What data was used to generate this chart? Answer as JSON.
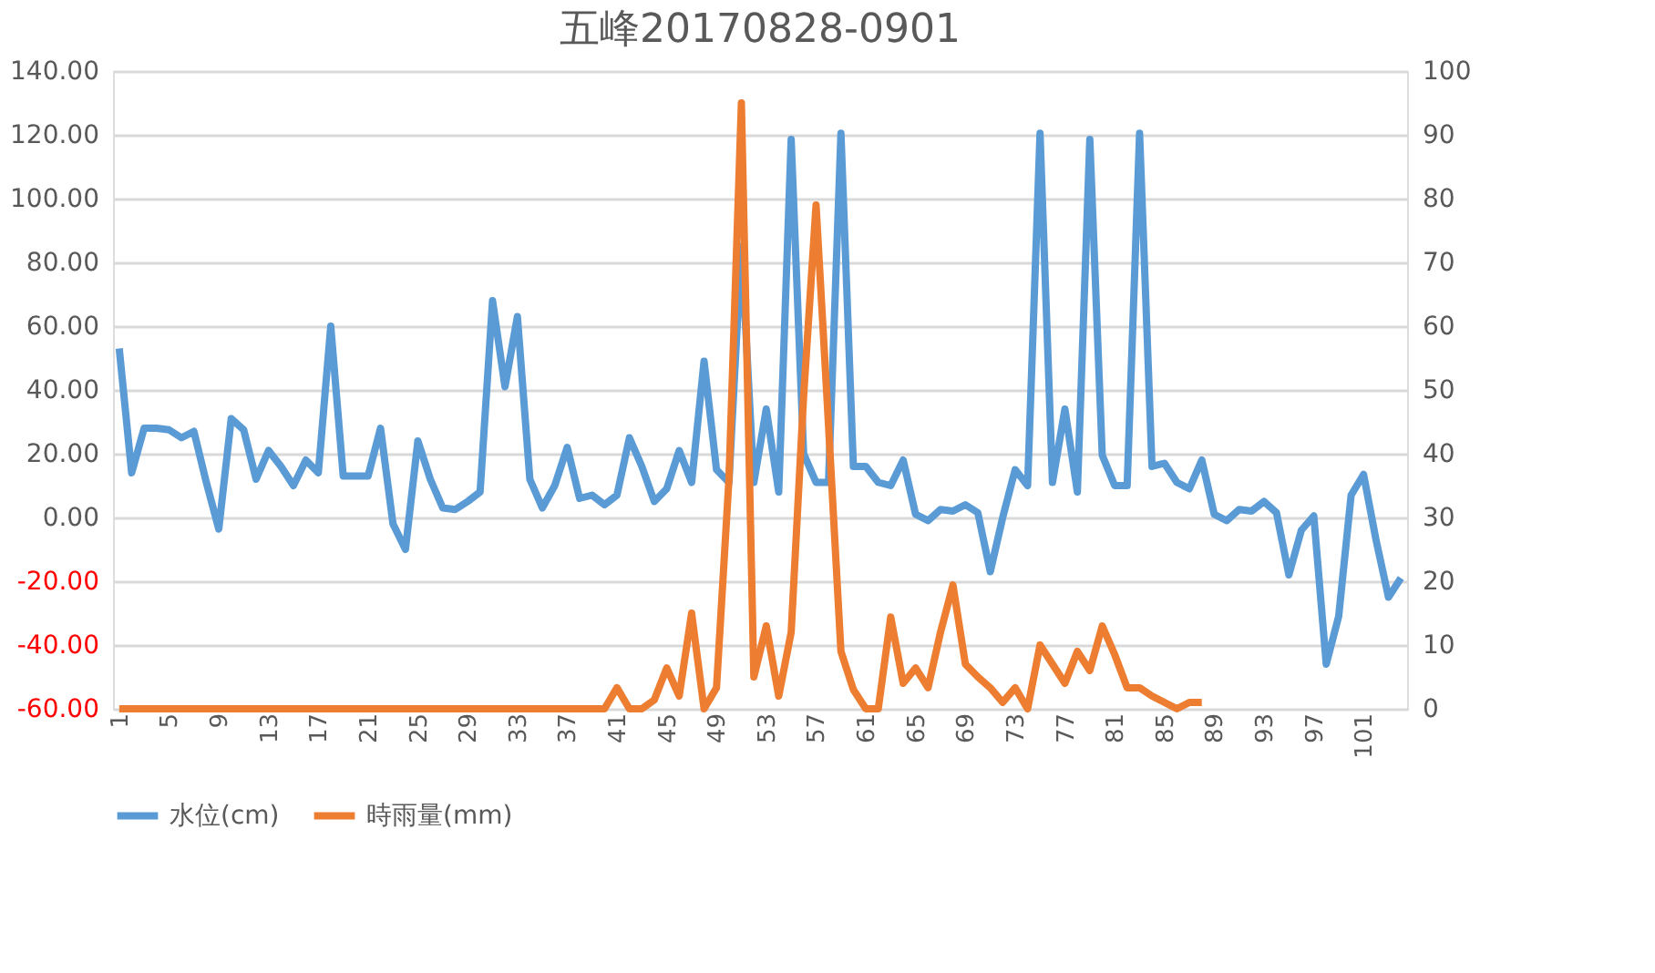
{
  "chart_data": {
    "type": "line",
    "title": "五峰20170828-0901",
    "categories": [
      "1",
      null,
      null,
      null,
      "5",
      null,
      null,
      null,
      "9",
      null,
      null,
      null,
      "13",
      null,
      null,
      null,
      "17",
      null,
      null,
      null,
      "21",
      null,
      null,
      null,
      "25",
      null,
      null,
      null,
      "29",
      null,
      null,
      null,
      "33",
      null,
      null,
      null,
      "37",
      null,
      null,
      null,
      "41",
      null,
      null,
      null,
      "45",
      null,
      null,
      null,
      "49",
      null,
      null,
      null,
      "53",
      null,
      null,
      null,
      "57",
      null,
      null,
      null,
      "61",
      null,
      null,
      null,
      "65",
      null,
      null,
      null,
      "69",
      null,
      null,
      null,
      "73",
      null,
      null,
      null,
      "77",
      null,
      null,
      null,
      "81",
      null,
      null,
      null,
      "85",
      null,
      null,
      null,
      "89",
      null,
      null,
      null,
      "93",
      null,
      null,
      null,
      "97",
      null,
      null,
      null,
      "101",
      null,
      null,
      null
    ],
    "series": [
      {
        "name": "水位(cm)",
        "color": "#5b9bd5",
        "values": [
          53,
          14,
          28,
          28,
          27.5,
          25,
          27,
          11,
          -3.6,
          31,
          27.5,
          12,
          21,
          16,
          10,
          18,
          14,
          60,
          13,
          13,
          13,
          28,
          -2,
          -10,
          24,
          12,
          3,
          2.5,
          5,
          8,
          68,
          41,
          63,
          12,
          3,
          10,
          22,
          6,
          7,
          4,
          7,
          25,
          16,
          5,
          9,
          21,
          11,
          49,
          15,
          11,
          85,
          11,
          34,
          8,
          118.6,
          20,
          11,
          11,
          120.5,
          16,
          16,
          11,
          10,
          18,
          1,
          -1,
          2.5,
          2,
          4,
          1.5,
          -17,
          0,
          15,
          10,
          120.5,
          11,
          34,
          8,
          118.6,
          19.5,
          10,
          10,
          120.5,
          16,
          17,
          11,
          9,
          18,
          1,
          -1,
          2.5,
          2,
          5,
          1.5,
          -18,
          -4,
          0.5,
          -46,
          -31,
          7,
          13.5,
          -7,
          -25,
          -19
        ]
      },
      {
        "name": "時雨量(mm)",
        "color": "#ed7d31",
        "axis": "y2",
        "values": [
          0,
          0,
          0,
          0,
          0,
          0,
          0,
          0,
          0,
          0,
          0,
          0,
          0,
          0,
          0,
          0,
          0,
          0,
          0,
          0,
          0,
          0,
          0,
          0,
          0,
          0,
          0,
          0,
          0,
          0,
          0,
          0,
          0,
          0,
          0,
          0,
          0,
          0,
          0,
          0,
          3.3,
          0,
          0,
          1.4,
          6.4,
          2,
          15,
          0,
          3.3,
          36,
          95,
          5,
          13,
          2,
          12,
          49,
          79,
          44.5,
          9,
          3,
          0,
          0,
          14.4,
          4,
          6.4,
          3.3,
          12,
          19.4,
          7,
          5,
          3.3,
          1,
          3.3,
          0,
          10,
          7,
          4,
          9,
          6,
          13,
          8.5,
          3.3,
          3.3,
          2,
          1,
          0,
          1,
          1,
          null,
          null,
          null,
          null,
          null,
          null,
          null,
          null,
          null,
          null,
          null,
          null,
          null,
          null,
          null,
          null
        ]
      }
    ],
    "ylim": [
      -60,
      140
    ],
    "yticks": [
      {
        "value": -60,
        "label": "-60.00"
      },
      {
        "value": -40,
        "label": "-40.00"
      },
      {
        "value": -20,
        "label": "-20.00"
      },
      {
        "value": 0,
        "label": "0.00"
      },
      {
        "value": 20,
        "label": "20.00"
      },
      {
        "value": 40,
        "label": "40.00"
      },
      {
        "value": 60,
        "label": "60.00"
      },
      {
        "value": 80,
        "label": "80.00"
      },
      {
        "value": 100,
        "label": "100.00"
      },
      {
        "value": 120,
        "label": "120.00"
      },
      {
        "value": 140,
        "label": "140.00"
      }
    ],
    "y2lim": [
      0,
      100
    ],
    "y2ticks": [
      0,
      10,
      20,
      30,
      40,
      50,
      60,
      70,
      80,
      90,
      100
    ],
    "grid": "y",
    "legend": "bottom",
    "marker": "none",
    "line_style": "solid"
  }
}
